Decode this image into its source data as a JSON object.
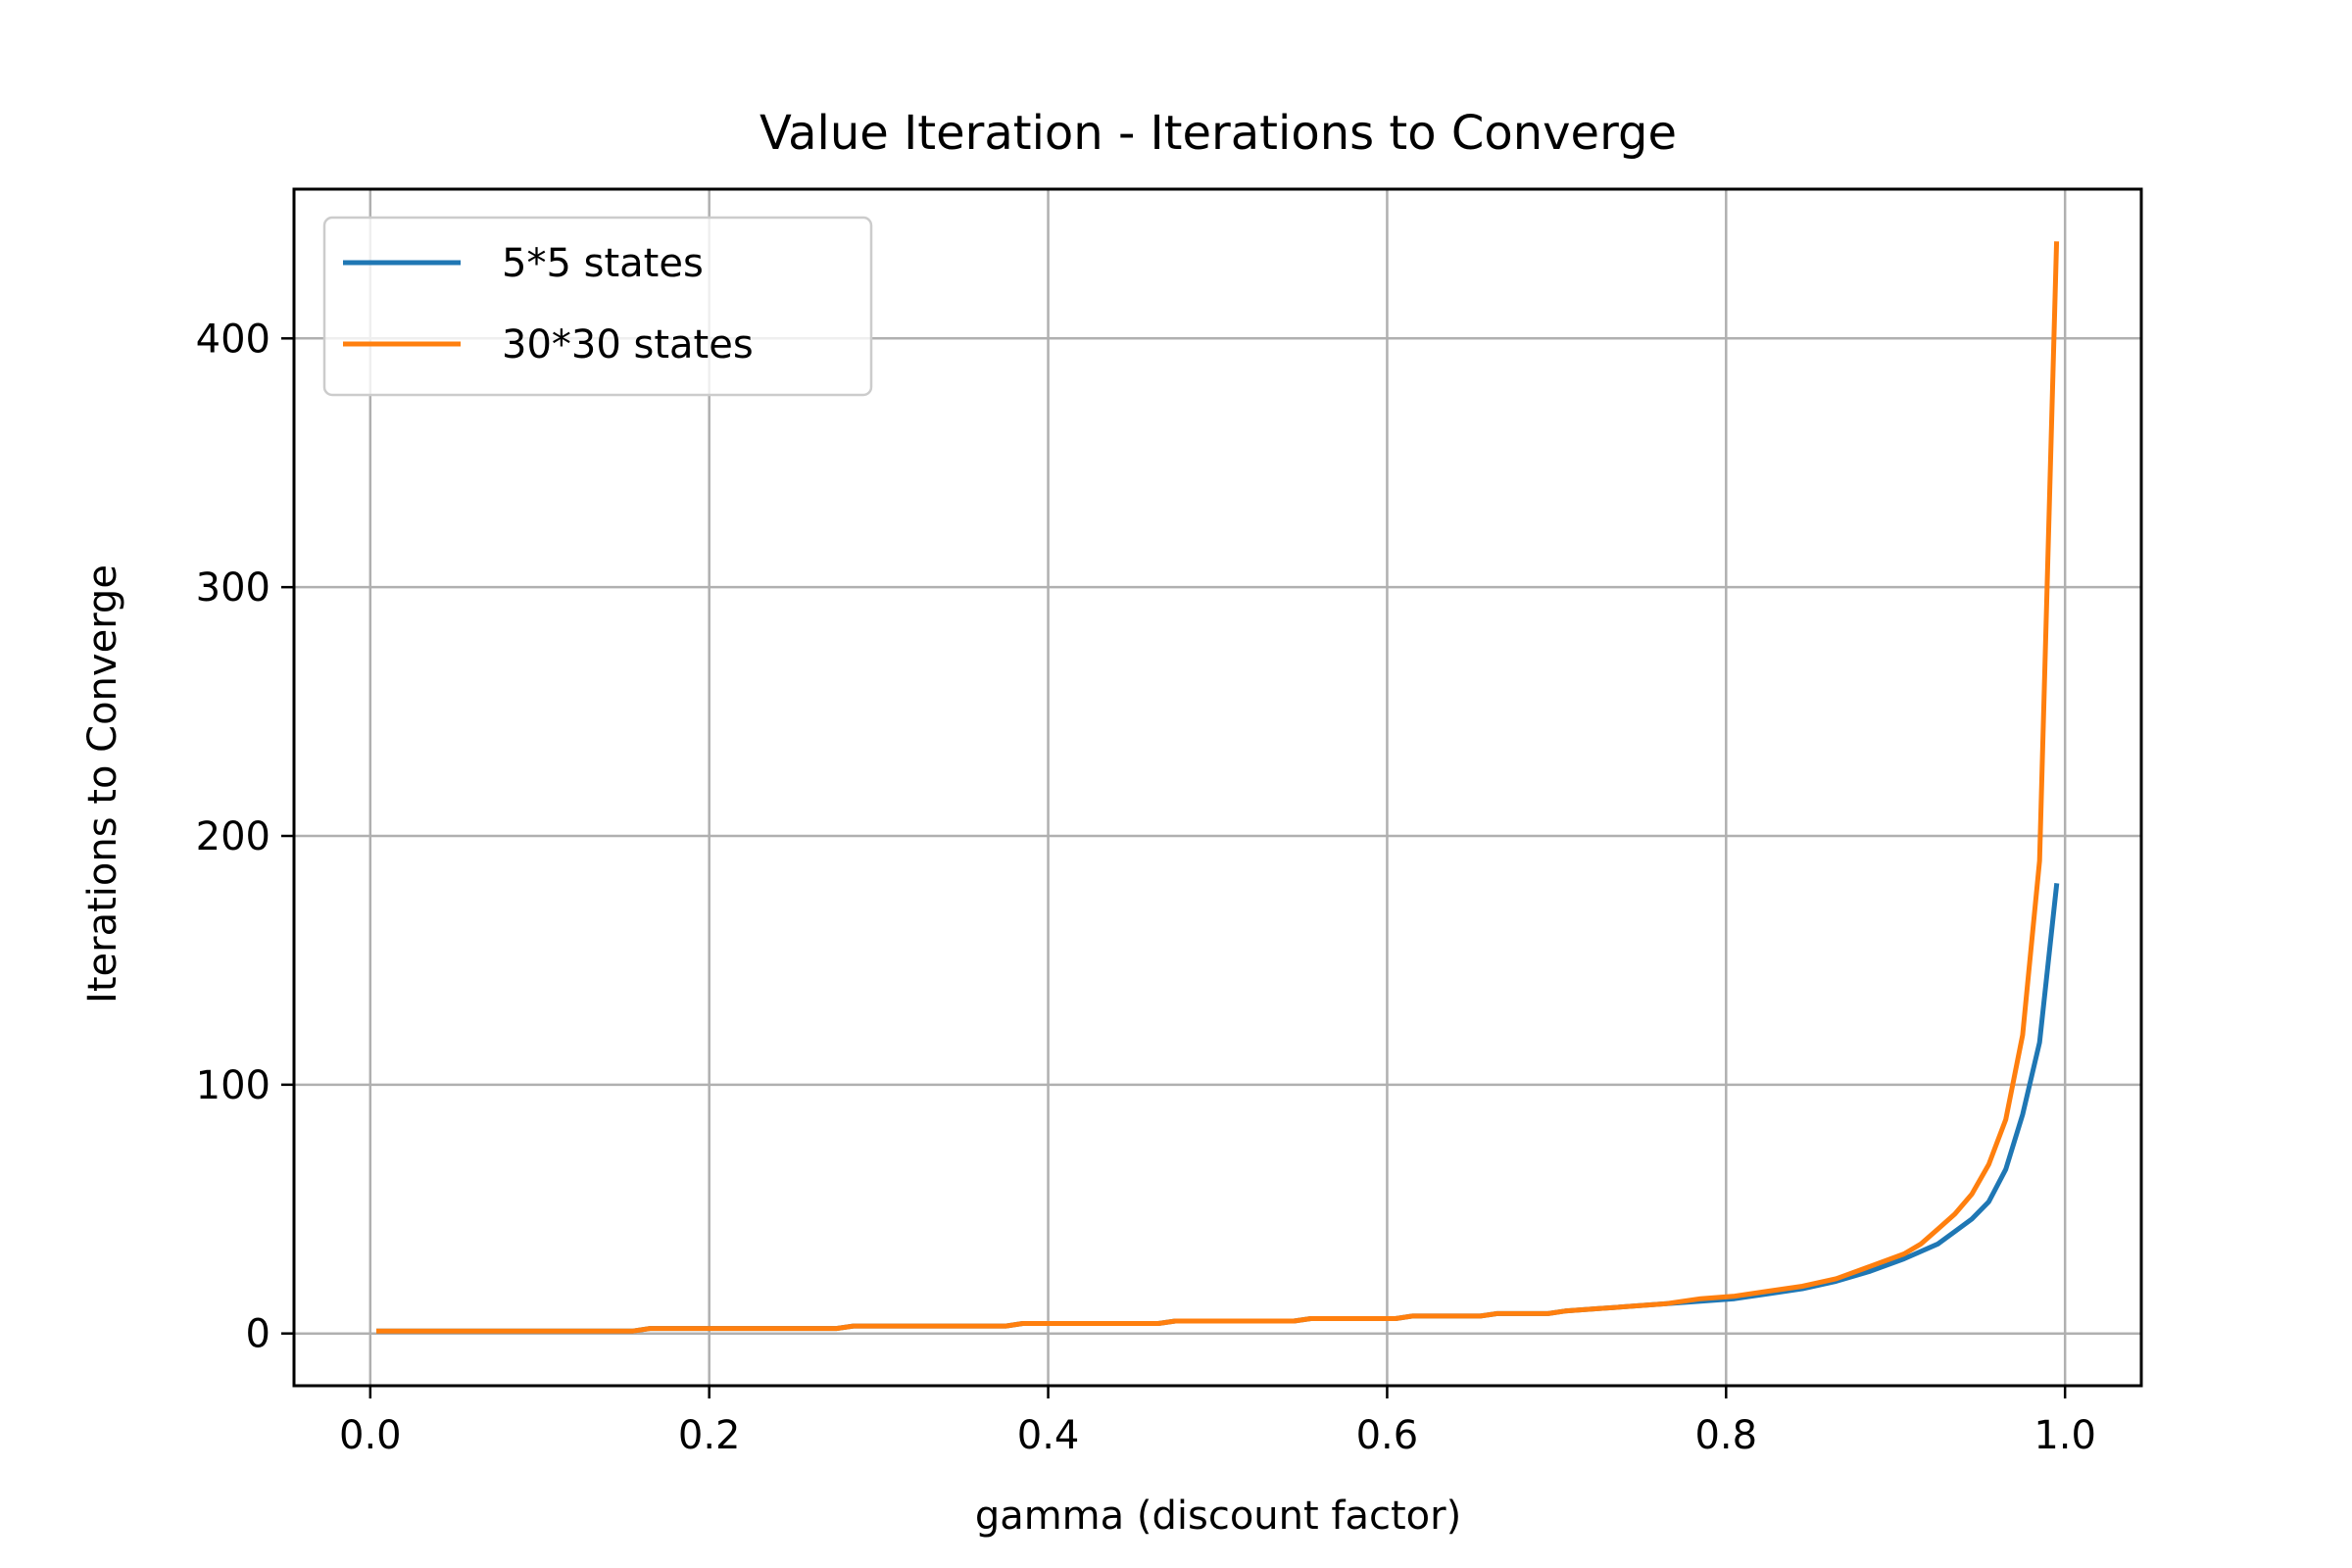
{
  "chart_data": {
    "type": "line",
    "title": "Value Iteration - Iterations to Converge",
    "xlabel": "gamma (discount factor)",
    "ylabel": "Iterations to Converge",
    "xlim": [
      -0.045,
      1.045
    ],
    "ylim": [
      -21,
      460
    ],
    "xticks": [
      0.0,
      0.2,
      0.4,
      0.6,
      0.8,
      1.0
    ],
    "xtick_labels": [
      "0.0",
      "0.2",
      "0.4",
      "0.6",
      "0.8",
      "1.0"
    ],
    "yticks": [
      0,
      100,
      200,
      300,
      400
    ],
    "ytick_labels": [
      "0",
      "100",
      "200",
      "300",
      "400"
    ],
    "grid": true,
    "legend_position": "top-left",
    "series": [
      {
        "name": "5*5 states",
        "color": "#1f77b4",
        "x": [
          0.005,
          0.155,
          0.165,
          0.275,
          0.285,
          0.375,
          0.385,
          0.465,
          0.475,
          0.545,
          0.555,
          0.605,
          0.615,
          0.655,
          0.665,
          0.695,
          0.705,
          0.725,
          0.745,
          0.765,
          0.785,
          0.805,
          0.825,
          0.845,
          0.865,
          0.885,
          0.905,
          0.925,
          0.935,
          0.945,
          0.955,
          0.965,
          0.975,
          0.985,
          0.995
        ],
        "values": [
          1,
          1,
          2,
          2,
          3,
          3,
          4,
          4,
          5,
          5,
          6,
          6,
          7,
          7,
          8,
          8,
          9,
          10,
          11,
          12,
          13,
          14,
          16,
          18,
          21,
          25,
          30,
          36,
          41,
          46,
          53,
          66,
          88,
          117,
          180
        ]
      },
      {
        "name": "30*30 states",
        "color": "#ff7f0e",
        "x": [
          0.005,
          0.155,
          0.165,
          0.275,
          0.285,
          0.375,
          0.385,
          0.465,
          0.475,
          0.545,
          0.555,
          0.605,
          0.615,
          0.655,
          0.665,
          0.695,
          0.705,
          0.725,
          0.745,
          0.765,
          0.785,
          0.805,
          0.825,
          0.845,
          0.865,
          0.885,
          0.905,
          0.915,
          0.925,
          0.935,
          0.945,
          0.955,
          0.965,
          0.975,
          0.985,
          0.995
        ],
        "values": [
          1,
          1,
          2,
          2,
          3,
          3,
          4,
          4,
          5,
          5,
          6,
          6,
          7,
          7,
          8,
          8,
          9,
          10,
          11,
          12,
          14,
          15,
          17,
          19,
          22,
          27,
          32,
          36,
          42,
          48,
          56,
          68,
          86,
          120,
          190,
          438
        ]
      }
    ]
  }
}
